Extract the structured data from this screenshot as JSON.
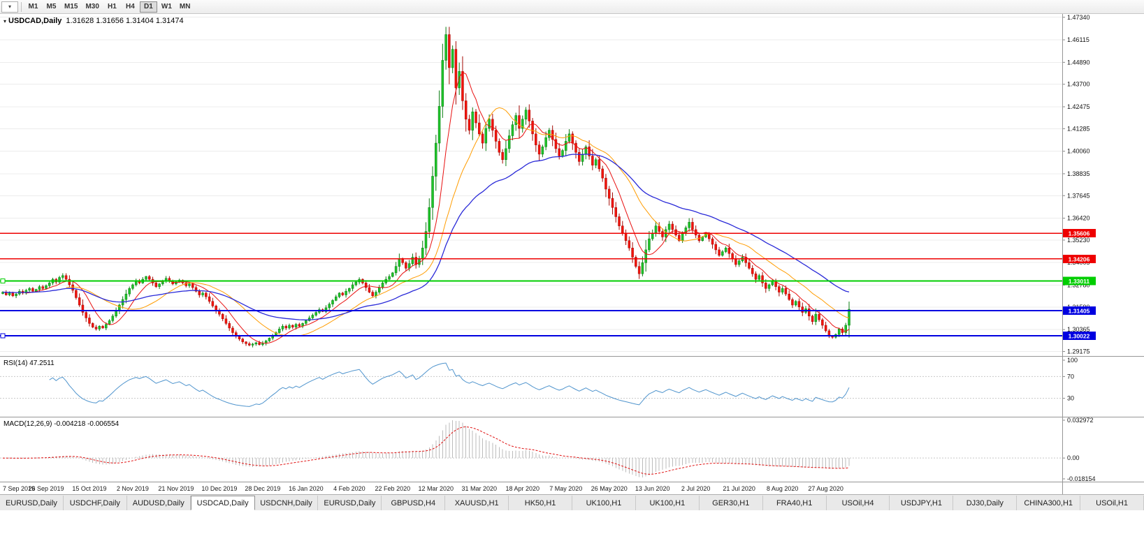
{
  "toolbar": {
    "timeframes": [
      "M1",
      "M5",
      "M15",
      "M30",
      "H1",
      "H4",
      "D1",
      "W1",
      "MN"
    ],
    "active_timeframe": "D1"
  },
  "chart": {
    "header": {
      "symbol": "USDCAD,Daily",
      "ohlc": "1.31628 1.31656 1.31404 1.31474"
    }
  },
  "indicators": {
    "rsi_label": "RSI(14) 47.2511",
    "macd_label": "MACD(12,26,9) -0.004218 -0.006554"
  },
  "tabs": {
    "active_index": 3,
    "items": [
      "EURUSD,Daily",
      "USDCHF,Daily",
      "AUDUSD,Daily",
      "USDCAD,Daily",
      "USDCNH,Daily",
      "EURUSD,Daily",
      "GBPUSD,H4",
      "XAUUSD,H1",
      "HK50,H1",
      "UK100,H1",
      "UK100,H1",
      "GER30,H1",
      "FRA40,H1",
      "USOil,H4",
      "USDJPY,H1",
      "DJ30,Daily",
      "CHINA300,H1",
      "USOil,H1"
    ]
  },
  "chart_data": {
    "type": "candlestick",
    "symbol": "USDCAD",
    "timeframe": "Daily",
    "last_ohlc": {
      "open": 1.31628,
      "high": 1.31656,
      "low": 1.31404,
      "close": 1.31474
    },
    "price_range": [
      1.2893,
      1.4752
    ],
    "price_axis": [
      "1.47340",
      "1.46115",
      "1.44890",
      "1.43700",
      "1.42475",
      "1.41285",
      "1.40060",
      "1.38835",
      "1.37645",
      "1.36420",
      "1.35230",
      "1.34005",
      "1.32780",
      "1.31590",
      "1.30365",
      "1.29175"
    ],
    "dates": [
      "7 Sep 2019",
      "26 Sep 2019",
      "15 Oct 2019",
      "2 Nov 2019",
      "21 Nov 2019",
      "10 Dec 2019",
      "28 Dec 2019",
      "16 Jan 2020",
      "4 Feb 2020",
      "22 Feb 2020",
      "12 Mar 2020",
      "31 Mar 2020",
      "18 Apr 2020",
      "7 May 2020",
      "26 May 2020",
      "13 Jun 2020",
      "2 Jul 2020",
      "21 Jul 2020",
      "8 Aug 2020",
      "27 Aug 2020"
    ],
    "candles_per_label": 13,
    "closes": [
      1.324,
      1.3225,
      1.3235,
      1.322,
      1.323,
      1.3245,
      1.3235,
      1.325,
      1.326,
      1.3245,
      1.3255,
      1.327,
      1.326,
      1.3275,
      1.329,
      1.331,
      1.3295,
      1.332,
      1.333,
      1.331,
      1.328,
      1.325,
      1.321,
      1.317,
      1.313,
      1.31,
      1.307,
      1.305,
      1.304,
      1.3055,
      1.3045,
      1.3065,
      1.3085,
      1.311,
      1.314,
      1.317,
      1.32,
      1.323,
      1.326,
      1.328,
      1.33,
      1.329,
      1.331,
      1.3325,
      1.331,
      1.329,
      1.327,
      1.3285,
      1.33,
      1.3315,
      1.33,
      1.3285,
      1.3295,
      1.3305,
      1.329,
      1.3275,
      1.3285,
      1.3265,
      1.3245,
      1.3225,
      1.3235,
      1.3215,
      1.319,
      1.3165,
      1.314,
      1.312,
      1.3095,
      1.307,
      1.3045,
      1.302,
      1.3,
      1.2985,
      1.297,
      1.296,
      1.2952,
      1.2958,
      1.2965,
      1.2955,
      1.2962,
      1.2975,
      1.299,
      1.3005,
      1.302,
      1.304,
      1.3055,
      1.3045,
      1.306,
      1.305,
      1.3065,
      1.3055,
      1.307,
      1.3085,
      1.31,
      1.3115,
      1.313,
      1.3145,
      1.3135,
      1.3155,
      1.3175,
      1.3195,
      1.3215,
      1.3235,
      1.3225,
      1.3245,
      1.326,
      1.328,
      1.3295,
      1.331,
      1.329,
      1.3265,
      1.324,
      1.322,
      1.324,
      1.3265,
      1.329,
      1.331,
      1.3325,
      1.3345,
      1.338,
      1.342,
      1.34,
      1.337,
      1.3395,
      1.343,
      1.339,
      1.342,
      1.348,
      1.357,
      1.37,
      1.387,
      1.405,
      1.425,
      1.45,
      1.464,
      1.446,
      1.456,
      1.435,
      1.444,
      1.428,
      1.418,
      1.412,
      1.422,
      1.416,
      1.41,
      1.405,
      1.413,
      1.418,
      1.412,
      1.406,
      1.4,
      1.396,
      1.402,
      1.409,
      1.415,
      1.42,
      1.413,
      1.418,
      1.423,
      1.417,
      1.41,
      1.404,
      1.399,
      1.403,
      1.408,
      1.412,
      1.407,
      1.402,
      1.398,
      1.401,
      1.406,
      1.41,
      1.405,
      1.4,
      1.395,
      1.399,
      1.403,
      1.398,
      1.393,
      1.396,
      1.391,
      1.386,
      1.38,
      1.375,
      1.37,
      1.365,
      1.36,
      1.356,
      1.352,
      1.348,
      1.343,
      1.338,
      1.334,
      1.34,
      1.347,
      1.353,
      1.356,
      1.36,
      1.357,
      1.354,
      1.358,
      1.361,
      1.358,
      1.355,
      1.352,
      1.356,
      1.359,
      1.362,
      1.358,
      1.355,
      1.352,
      1.354,
      1.356,
      1.353,
      1.35,
      1.347,
      1.344,
      1.346,
      1.348,
      1.345,
      1.342,
      1.339,
      1.341,
      1.343,
      1.34,
      1.337,
      1.334,
      1.331,
      1.333,
      1.329,
      1.326,
      1.328,
      1.33,
      1.327,
      1.324,
      1.326,
      1.323,
      1.32,
      1.317,
      1.319,
      1.316,
      1.313,
      1.315,
      1.311,
      1.308,
      1.312,
      1.309,
      1.306,
      1.303,
      1.3,
      1.2995,
      1.301,
      1.304,
      1.302,
      1.306,
      1.3147
    ],
    "colors": {
      "up": {
        "body": "#1fc32a",
        "border": "#0a7d12"
      },
      "down": {
        "body": "#f2140c",
        "border": "#a50b05"
      },
      "grid": "#ececec",
      "axis_text": "#111111"
    },
    "moving_averages": [
      {
        "period": 8,
        "type": "sma",
        "color": "#e81010",
        "width": 1
      },
      {
        "period": 20,
        "type": "sma",
        "color": "#ff9c00",
        "width": 1
      },
      {
        "period": 45,
        "type": "ema",
        "color": "#2a2ad8",
        "width": 1.3
      }
    ],
    "levels": [
      {
        "label": "1.35606",
        "price": 1.35606,
        "color": "#ee0000",
        "width": 1.5,
        "handle": false
      },
      {
        "label": "1.34206",
        "price": 1.34206,
        "color": "#ee0000",
        "width": 1.5,
        "handle": false
      },
      {
        "label": "1.33011",
        "price": 1.33011,
        "color": "#00ce00",
        "width": 2,
        "handle": true
      },
      {
        "label": "1.31405",
        "price": 1.31405,
        "color": "#0000e0",
        "width": 2,
        "handle": false
      },
      {
        "label": "1.30022",
        "price": 1.30022,
        "color": "#0000e0",
        "width": 2,
        "handle": true
      }
    ],
    "rsi": {
      "period": 14,
      "current": 47.2511,
      "color": "#4f94cd",
      "guides": [
        70,
        30
      ],
      "axis": [
        {
          "text": "100",
          "v": 100
        },
        {
          "text": "70",
          "v": 70
        },
        {
          "text": "30",
          "v": 30
        }
      ]
    },
    "macd": {
      "fast": 12,
      "slow": 26,
      "signal": 9,
      "macd_current": -0.004218,
      "signal_current": -0.006554,
      "range": [
        -0.018154,
        0.032972
      ],
      "histogram_color": "#bbbbbb",
      "signal_color": "#e01010",
      "axis": [
        {
          "text": "0.032972",
          "v": 0.032972
        },
        {
          "text": "0.00",
          "v": 0
        },
        {
          "text": "-0.018154",
          "v": -0.018154
        }
      ]
    }
  }
}
